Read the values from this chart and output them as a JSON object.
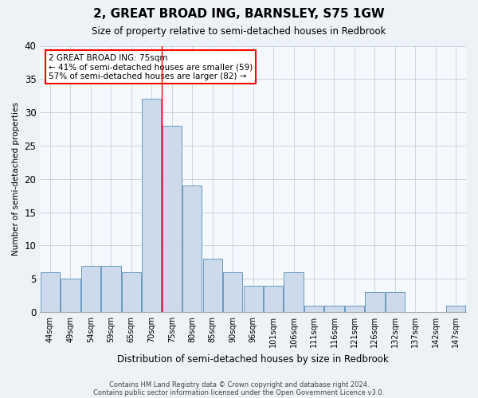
{
  "title": "2, GREAT BROAD ING, BARNSLEY, S75 1GW",
  "subtitle": "Size of property relative to semi-detached houses in Redbrook",
  "xlabel": "Distribution of semi-detached houses by size in Redbrook",
  "ylabel": "Number of semi-detached properties",
  "categories": [
    "44sqm",
    "49sqm",
    "54sqm",
    "59sqm",
    "65sqm",
    "70sqm",
    "75sqm",
    "80sqm",
    "85sqm",
    "90sqm",
    "96sqm",
    "101sqm",
    "106sqm",
    "111sqm",
    "116sqm",
    "121sqm",
    "126sqm",
    "132sqm",
    "137sqm",
    "142sqm",
    "147sqm"
  ],
  "values": [
    6,
    5,
    7,
    7,
    6,
    32,
    28,
    19,
    8,
    6,
    4,
    4,
    6,
    1,
    1,
    1,
    3,
    3,
    0,
    0,
    1
  ],
  "bar_color": "#ccdaeb",
  "bar_edge_color": "#6a9bbf",
  "red_line_index": 6,
  "ylim": [
    0,
    40
  ],
  "yticks": [
    0,
    5,
    10,
    15,
    20,
    25,
    30,
    35,
    40
  ],
  "annotation_title": "2 GREAT BROAD ING: 75sqm",
  "annotation_line1": "← 41% of semi-detached houses are smaller (59)",
  "annotation_line2": "57% of semi-detached houses are larger (82) →",
  "footer1": "Contains HM Land Registry data © Crown copyright and database right 2024.",
  "footer2": "Contains public sector information licensed under the Open Government Licence v3.0.",
  "bg_color": "#edf2f7",
  "plot_bg_color": "#f5f8fc",
  "grid_color": "#c5d0de"
}
